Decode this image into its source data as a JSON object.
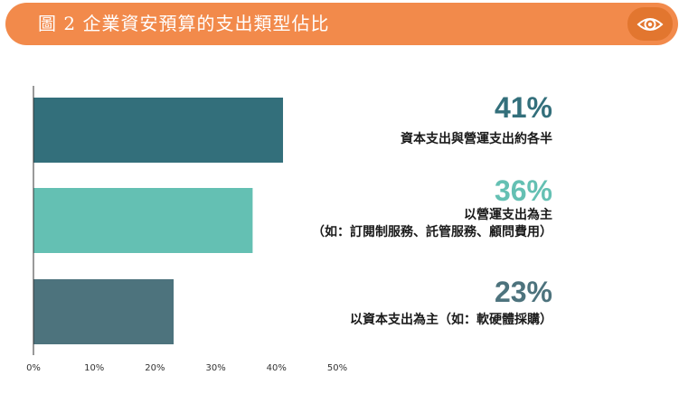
{
  "header": {
    "title": "圖 2 企業資安預算的支出類型佔比",
    "icon": "eye-icon"
  },
  "colors": {
    "header": "#f28a4b",
    "header_button": "#e2762f",
    "bar1": "#336f7b",
    "bar2": "#64c0b3",
    "bar3": "#4d737d"
  },
  "chart_data": {
    "type": "bar",
    "orientation": "horizontal",
    "categories": [
      "資本支出與營運支出約各半",
      "以營運支出為主（如：訂閱制服務、託管服務、顧問費用）",
      "以資本支出為主（如：軟硬體採購）"
    ],
    "values": [
      41,
      36,
      23
    ],
    "value_labels": [
      "41%",
      "36%",
      "23%"
    ],
    "xlim": [
      0,
      50
    ],
    "xticks": [
      "0%",
      "10%",
      "20%",
      "30%",
      "40%",
      "50%"
    ],
    "grid": false,
    "legend": "none"
  },
  "labels": [
    {
      "pct": "41%",
      "line1": "資本支出與營運支出約各半",
      "line2": ""
    },
    {
      "pct": "36%",
      "line1": "以營運支出為主",
      "line2": "（如：訂閱制服務、託管服務、顧問費用）"
    },
    {
      "pct": "23%",
      "line1": "以資本支出為主（如：軟硬體採購）",
      "line2": ""
    }
  ]
}
